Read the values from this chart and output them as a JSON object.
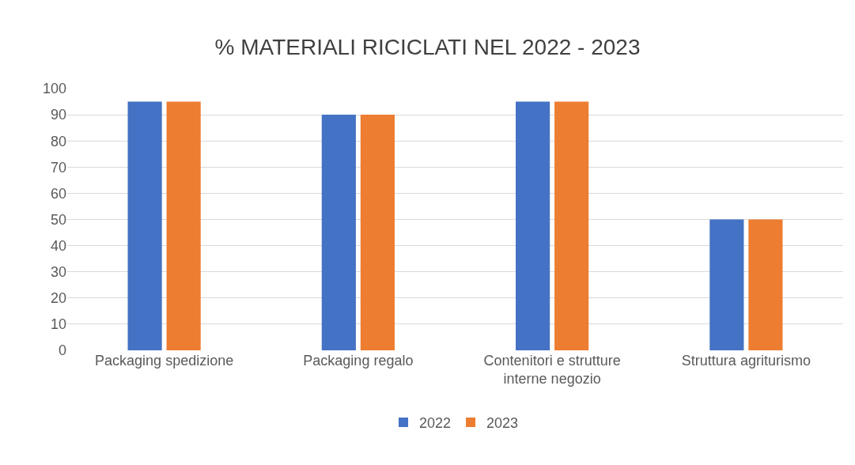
{
  "chart_data": {
    "type": "bar",
    "title": "% MATERIALI RICICLATI NEL 2022 - 2023",
    "categories": [
      "Packaging spedizione",
      "Packaging regalo",
      "Contenitori e strutture interne negozio",
      "Struttura agriturismo"
    ],
    "series": [
      {
        "name": "2022",
        "color": "#4472c4",
        "values": [
          95,
          90,
          95,
          50
        ]
      },
      {
        "name": "2023",
        "color": "#ed7d31",
        "values": [
          95,
          90,
          95,
          50
        ]
      }
    ],
    "ylim": [
      0,
      100
    ],
    "yticks": [
      0,
      10,
      20,
      30,
      40,
      50,
      60,
      70,
      80,
      90,
      100
    ],
    "grid": "y",
    "legend": "bottom"
  }
}
